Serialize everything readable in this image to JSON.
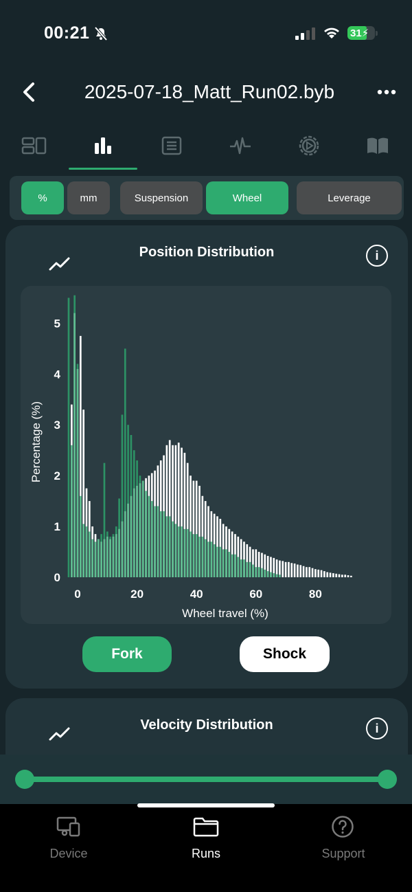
{
  "status": {
    "time": "00:21",
    "battery": "31"
  },
  "header": {
    "title": "2025-07-18_Matt_Run02.byb"
  },
  "tabs": [
    "summary-icon",
    "bar-chart-icon",
    "list-icon",
    "waveform-icon",
    "gear-play-icon",
    "book-icon"
  ],
  "chips": [
    {
      "label": "%",
      "active": true
    },
    {
      "label": "mm",
      "active": false
    },
    {
      "label": "Suspension",
      "active": false
    },
    {
      "label": "Wheel",
      "active": true
    },
    {
      "label": "Leverage",
      "active": false
    }
  ],
  "position_card": {
    "title": "Position Distribution",
    "fork_label": "Fork",
    "shock_label": "Shock"
  },
  "velocity_card": {
    "title": "Velocity Distribution"
  },
  "nav": [
    {
      "label": "Device",
      "active": false
    },
    {
      "label": "Runs",
      "active": true
    },
    {
      "label": "Support",
      "active": false
    }
  ],
  "colors": {
    "accent": "#2eab6f",
    "fork_bar": "#2eab6f",
    "shock_bar": "#ffffff"
  },
  "chart_data": {
    "type": "bar",
    "xlabel": "Wheel travel (%)",
    "ylabel": "Percentage (%)",
    "xlim": [
      -3,
      94
    ],
    "ylim": [
      0,
      5.6
    ],
    "xticks": [
      0,
      20,
      40,
      60,
      80
    ],
    "yticks": [
      0,
      1,
      2,
      3,
      4,
      5
    ],
    "series": [
      {
        "name": "Fork",
        "x": [
          -3,
          -2,
          -1,
          0,
          1,
          2,
          3,
          4,
          5,
          6,
          7,
          8,
          9,
          10,
          11,
          12,
          13,
          14,
          15,
          16,
          17,
          18,
          19,
          20,
          21,
          22,
          23,
          24,
          25,
          26,
          27,
          28,
          29,
          30,
          31,
          32,
          33,
          34,
          35,
          36,
          37,
          38,
          39,
          40,
          41,
          42,
          43,
          44,
          45,
          46,
          47,
          48,
          49,
          50,
          51,
          52,
          53,
          54,
          55,
          56,
          57,
          58,
          59,
          60,
          61,
          62,
          63,
          64,
          65,
          66,
          67,
          68
        ],
        "values": [
          5.5,
          2.6,
          5.55,
          4.2,
          1.6,
          1.05,
          1.0,
          0.9,
          0.75,
          0.7,
          0.75,
          0.85,
          2.25,
          0.9,
          0.8,
          0.85,
          1.0,
          1.55,
          3.2,
          4.5,
          3.0,
          2.8,
          2.5,
          2.3,
          2.0,
          1.9,
          1.7,
          1.6,
          1.5,
          1.4,
          1.4,
          1.3,
          1.3,
          1.2,
          1.2,
          1.1,
          1.05,
          1.0,
          1.0,
          0.95,
          0.95,
          0.9,
          0.85,
          0.85,
          0.8,
          0.8,
          0.75,
          0.7,
          0.7,
          0.65,
          0.6,
          0.6,
          0.55,
          0.55,
          0.5,
          0.45,
          0.45,
          0.4,
          0.35,
          0.35,
          0.3,
          0.3,
          0.25,
          0.2,
          0.2,
          0.18,
          0.15,
          0.12,
          0.1,
          0.08,
          0.06,
          0.05
        ]
      },
      {
        "name": "Shock",
        "x": [
          -2,
          -1,
          0,
          1,
          2,
          3,
          4,
          5,
          6,
          7,
          8,
          9,
          10,
          11,
          12,
          13,
          14,
          15,
          16,
          17,
          18,
          19,
          20,
          21,
          22,
          23,
          24,
          25,
          26,
          27,
          28,
          29,
          30,
          31,
          32,
          33,
          34,
          35,
          36,
          37,
          38,
          39,
          40,
          41,
          42,
          43,
          44,
          45,
          46,
          47,
          48,
          49,
          50,
          51,
          52,
          53,
          54,
          55,
          56,
          57,
          58,
          59,
          60,
          61,
          62,
          63,
          64,
          65,
          66,
          67,
          68,
          69,
          70,
          71,
          72,
          73,
          74,
          75,
          76,
          77,
          78,
          79,
          80,
          81,
          82,
          83,
          84,
          85,
          86,
          87,
          88,
          89,
          90,
          91,
          92
        ],
        "values": [
          3.4,
          5.2,
          4.1,
          4.75,
          3.3,
          1.75,
          1.5,
          1.0,
          0.85,
          0.75,
          0.7,
          0.75,
          0.8,
          0.75,
          0.8,
          0.85,
          0.95,
          1.1,
          1.3,
          1.45,
          1.6,
          1.75,
          1.8,
          1.85,
          1.9,
          1.95,
          2.0,
          2.05,
          2.1,
          2.2,
          2.3,
          2.4,
          2.6,
          2.7,
          2.6,
          2.6,
          2.65,
          2.55,
          2.45,
          2.25,
          2.0,
          1.9,
          1.9,
          1.8,
          1.6,
          1.5,
          1.4,
          1.3,
          1.25,
          1.2,
          1.15,
          1.05,
          1.0,
          0.95,
          0.9,
          0.85,
          0.8,
          0.75,
          0.7,
          0.65,
          0.6,
          0.55,
          0.55,
          0.5,
          0.48,
          0.45,
          0.42,
          0.4,
          0.38,
          0.35,
          0.33,
          0.32,
          0.3,
          0.3,
          0.28,
          0.27,
          0.25,
          0.24,
          0.22,
          0.2,
          0.2,
          0.18,
          0.16,
          0.15,
          0.14,
          0.12,
          0.1,
          0.09,
          0.08,
          0.07,
          0.06,
          0.05,
          0.05,
          0.04,
          0.03
        ]
      }
    ]
  }
}
